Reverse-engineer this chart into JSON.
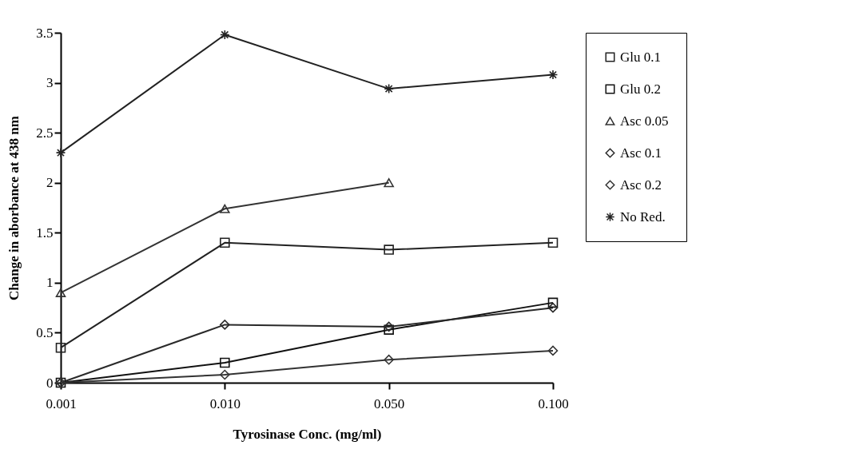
{
  "chart_data": {
    "type": "line",
    "xlabel": "Tyrosinase Conc. (mg/ml)",
    "ylabel": "Change in aborbance at 438 nm",
    "categories": [
      "0.001",
      "0.010",
      "0.050",
      "0.100"
    ],
    "ylim": [
      0,
      3.5
    ],
    "yticks": [
      0,
      0.5,
      1,
      1.5,
      2,
      2.5,
      3,
      3.5
    ],
    "grid": false,
    "legend": "right",
    "line_style": "solid",
    "series": [
      {
        "name": "Glu 0.1",
        "color": "#222222",
        "marker": "square",
        "values": [
          0.35,
          1.4,
          1.33,
          1.4
        ]
      },
      {
        "name": "Glu 0.2",
        "color": "#111111",
        "marker": "square",
        "values": [
          0,
          0.2,
          0.53,
          0.8
        ]
      },
      {
        "name": "Asc 0.05",
        "color": "#333333",
        "marker": "triangle",
        "values": [
          0.9,
          1.74,
          2.0,
          null
        ]
      },
      {
        "name": "Asc 0.1",
        "color": "#2a2a2a",
        "marker": "diamond",
        "values": [
          0,
          0.58,
          0.56,
          0.75
        ]
      },
      {
        "name": "Asc 0.2",
        "color": "#333333",
        "marker": "diamond",
        "values": [
          0,
          0.08,
          0.23,
          0.32
        ]
      },
      {
        "name": "No Red.",
        "color": "#222222",
        "marker": "cross",
        "values": [
          2.3,
          3.48,
          2.94,
          3.08
        ]
      }
    ]
  }
}
